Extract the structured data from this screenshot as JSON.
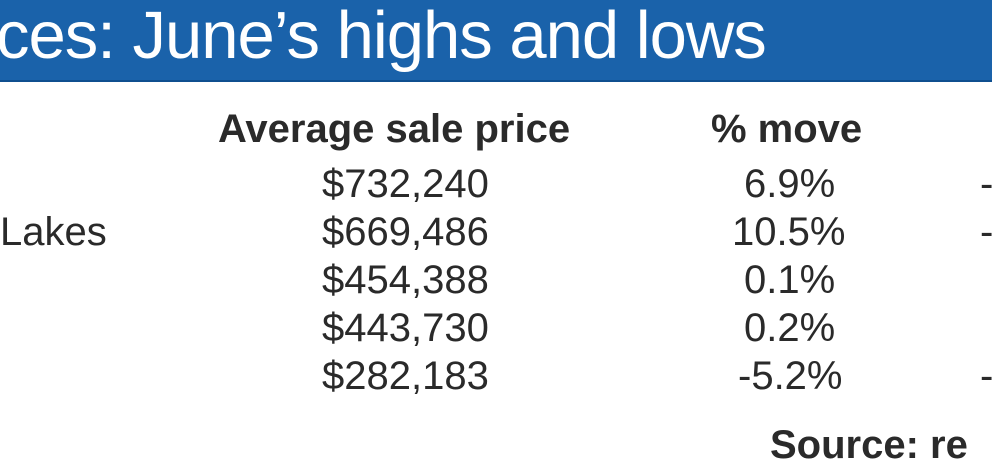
{
  "title": "ces: June’s highs and lows",
  "chart_data": {
    "type": "table",
    "columns": [
      "",
      "Average sale price",
      "% move",
      ""
    ],
    "rows": [
      {
        "region": "",
        "price": "$732,240",
        "move": "6.9%",
        "extra": "-"
      },
      {
        "region": "Lakes",
        "price": "$669,486",
        "move": "10.5%",
        "extra": "-"
      },
      {
        "region": "",
        "price": "$454,388",
        "move": "0.1%",
        "extra": ""
      },
      {
        "region": "",
        "price": "$443,730",
        "move": "0.2%",
        "extra": ""
      },
      {
        "region": "",
        "price": "$282,183",
        "move": "-5.2%",
        "extra": "-"
      }
    ]
  },
  "source": "Source: re",
  "colors": {
    "banner": "#1a62aa",
    "text": "#2a2a2a",
    "background": "#ffffff"
  }
}
